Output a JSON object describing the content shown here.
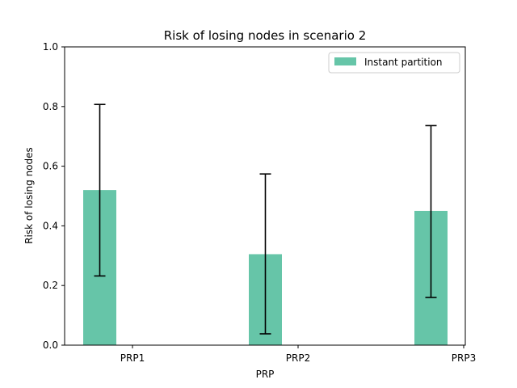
{
  "chart_data": {
    "type": "bar",
    "title": "Risk of losing nodes in scenario 2",
    "xlabel": "PRP",
    "ylabel": "Risk of losing nodes",
    "categories": [
      "PRP1",
      "PRP2",
      "PRP3"
    ],
    "ylim": [
      0,
      1.0
    ],
    "yticks": [
      "0.0",
      "0.2",
      "0.4",
      "0.6",
      "0.8",
      "1.0"
    ],
    "series": [
      {
        "name": "Instant partition",
        "values": [
          0.52,
          0.305,
          0.45
        ],
        "error_low": [
          0.232,
          0.038,
          0.16
        ],
        "error_high": [
          0.807,
          0.574,
          0.736
        ]
      }
    ],
    "legend": "top-right",
    "grid": false,
    "colors": {
      "bar": "#66c5a8",
      "error": "#000000",
      "axis": "#000000"
    }
  }
}
